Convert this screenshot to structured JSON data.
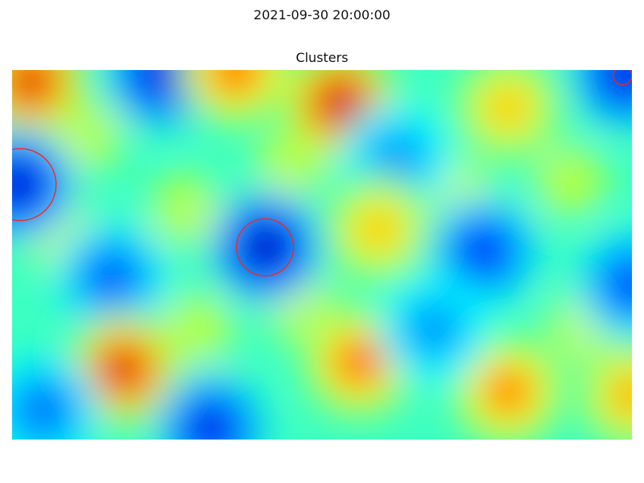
{
  "suptitle": "2021-09-30 20:00:00",
  "chart_data": {
    "type": "heatmap",
    "title": "Clusters",
    "colormap": "jet",
    "axes_visible": false,
    "grid": false,
    "x_range": [
      0,
      1
    ],
    "y_range": [
      0,
      1
    ],
    "note_values": "normalized field intensity 0 (low, blue) to 1 (high, red)",
    "field_blobs": [
      {
        "x": 0.03,
        "y": 0.97,
        "value": 0.95
      },
      {
        "x": 0.24,
        "y": 0.99,
        "value": 0.05
      },
      {
        "x": 0.36,
        "y": 1.0,
        "value": 0.85
      },
      {
        "x": 0.53,
        "y": 0.91,
        "value": 1.0
      },
      {
        "x": 0.62,
        "y": 0.76,
        "value": 0.25
      },
      {
        "x": 0.8,
        "y": 0.9,
        "value": 0.72
      },
      {
        "x": 0.99,
        "y": 0.99,
        "value": 0.05
      },
      {
        "x": 0.01,
        "y": 0.69,
        "value": 0.02
      },
      {
        "x": 0.41,
        "y": 0.52,
        "value": 0.0
      },
      {
        "x": 0.16,
        "y": 0.44,
        "value": 0.18
      },
      {
        "x": 0.59,
        "y": 0.57,
        "value": 0.72
      },
      {
        "x": 0.76,
        "y": 0.51,
        "value": 0.12
      },
      {
        "x": 1.0,
        "y": 0.42,
        "value": 0.15
      },
      {
        "x": 0.18,
        "y": 0.19,
        "value": 0.95
      },
      {
        "x": 0.56,
        "y": 0.21,
        "value": 0.85
      },
      {
        "x": 0.8,
        "y": 0.13,
        "value": 0.82
      },
      {
        "x": 0.32,
        "y": 0.03,
        "value": 0.08
      },
      {
        "x": 0.68,
        "y": 0.3,
        "value": 0.25
      },
      {
        "x": 1.0,
        "y": 0.12,
        "value": 0.75
      },
      {
        "x": 0.05,
        "y": 0.08,
        "value": 0.2
      }
    ],
    "circles": [
      {
        "x": 0.013,
        "y": 0.69,
        "r": 0.058
      },
      {
        "x": 0.408,
        "y": 0.52,
        "r": 0.046
      },
      {
        "x": 0.985,
        "y": 0.985,
        "r": 0.015
      }
    ],
    "circle_color": "#ff2020"
  }
}
